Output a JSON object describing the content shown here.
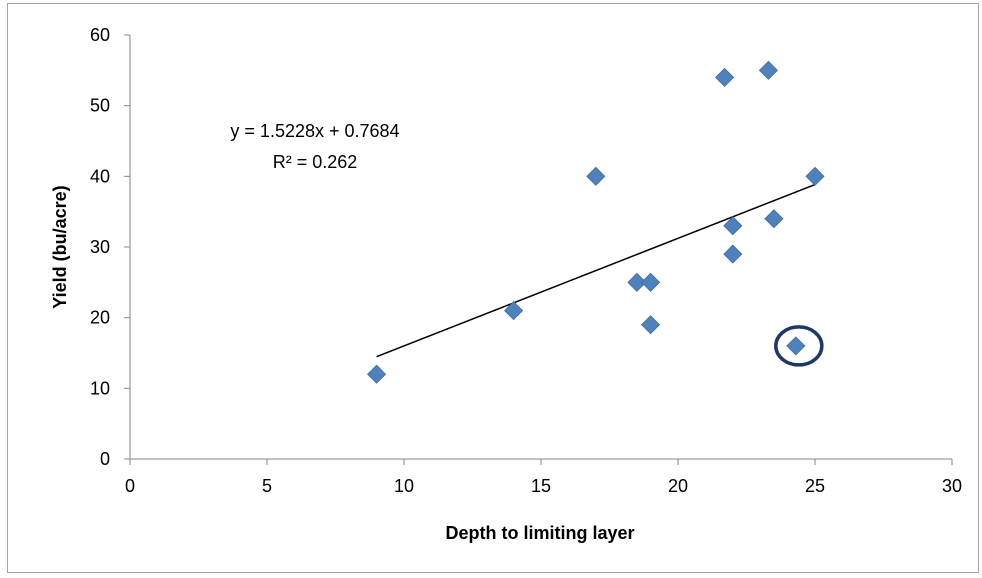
{
  "chart_data": {
    "type": "scatter",
    "xlabel": "Depth to limiting layer",
    "ylabel": "Yield (bu/acre)",
    "xlim": [
      0,
      30
    ],
    "ylim": [
      0,
      60
    ],
    "x_ticks": [
      "0",
      "5",
      "10",
      "15",
      "20",
      "25",
      "30"
    ],
    "y_ticks": [
      "0",
      "10",
      "20",
      "30",
      "40",
      "50",
      "60"
    ],
    "grid": false,
    "legend": "none",
    "marker": "diamond",
    "marker_color": "#4f81bd",
    "points": [
      {
        "x": 9,
        "y": 12
      },
      {
        "x": 14,
        "y": 21
      },
      {
        "x": 17,
        "y": 40
      },
      {
        "x": 18.5,
        "y": 25
      },
      {
        "x": 19,
        "y": 25
      },
      {
        "x": 19,
        "y": 19
      },
      {
        "x": 21.7,
        "y": 54
      },
      {
        "x": 22,
        "y": 33
      },
      {
        "x": 22,
        "y": 29
      },
      {
        "x": 23.3,
        "y": 55
      },
      {
        "x": 23.5,
        "y": 34
      },
      {
        "x": 24.3,
        "y": 16
      },
      {
        "x": 25,
        "y": 40
      }
    ],
    "highlighted_point": {
      "x": 24.3,
      "y": 16,
      "color": "#1f3864"
    },
    "trendline": {
      "type": "linear",
      "slope": 1.5228,
      "intercept": 0.7684,
      "x_range": [
        9,
        25
      ],
      "color": "#000000"
    },
    "annotations": {
      "equation": "y = 1.5228x + 0.7684",
      "r_squared": "R² = 0.262"
    }
  }
}
